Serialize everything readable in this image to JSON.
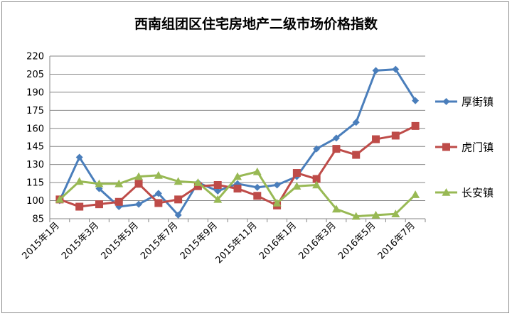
{
  "chart_data": {
    "type": "line",
    "title": "西南组团区住宅房地产二级市场价格指数",
    "xlabel": "",
    "ylabel": "",
    "ylim": [
      85,
      220
    ],
    "yticks": [
      85,
      100,
      115,
      130,
      145,
      160,
      175,
      190,
      205,
      220
    ],
    "grid": true,
    "legend_position": "right",
    "x": [
      "2015年1月",
      "2015年2月",
      "2015年3月",
      "2015年4月",
      "2015年5月",
      "2015年6月",
      "2015年7月",
      "2015年8月",
      "2015年9月",
      "2015年10月",
      "2015年11月",
      "2015年12月",
      "2016年1月",
      "2016年2月",
      "2016年3月",
      "2016年4月",
      "2016年5月",
      "2016年6月",
      "2016年7月"
    ],
    "xtick_labels": [
      "2015年1月",
      "2015年3月",
      "2015年5月",
      "2015年7月",
      "2015年9月",
      "2015年11月",
      "2016年1月",
      "2016年3月",
      "2016年5月",
      "2016年7月"
    ],
    "series": [
      {
        "name": "厚街镇",
        "color": "#4a7ebb",
        "marker": "diamond",
        "values": [
          100,
          136,
          110,
          95,
          97,
          106,
          88,
          115,
          108,
          114,
          111,
          113,
          120,
          143,
          152,
          165,
          208,
          209,
          183
        ]
      },
      {
        "name": "虎门镇",
        "color": "#be4b48",
        "marker": "square",
        "values": [
          101,
          95,
          97,
          99,
          114,
          98,
          101,
          112,
          113,
          110,
          104,
          96,
          123,
          118,
          143,
          138,
          151,
          154,
          162
        ]
      },
      {
        "name": "长安镇",
        "color": "#98b954",
        "marker": "triangle",
        "values": [
          101,
          116,
          114,
          114,
          120,
          121,
          116,
          115,
          101,
          120,
          124,
          98,
          112,
          113,
          93,
          87,
          88,
          89,
          105
        ]
      }
    ]
  }
}
